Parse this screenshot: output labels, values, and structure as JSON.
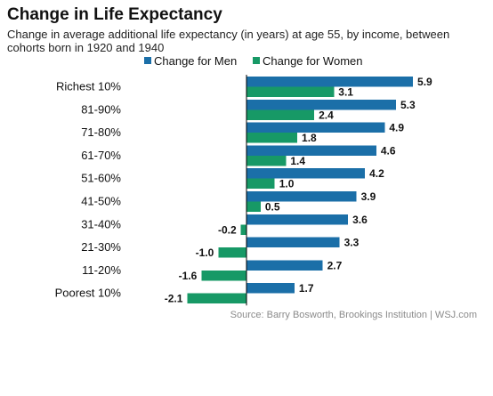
{
  "header": {
    "title": "Change in Life Expectancy",
    "subtitle": "Change in average additional life expectancy (in years) at age 55, by income, between cohorts born in 1920 and 1940"
  },
  "source": "Source: Barry Bosworth, Brookings Institution  |  WSJ.com",
  "colors": {
    "men": "#1b6fa8",
    "women": "#179966",
    "axis": "#000000"
  },
  "chart_data": {
    "type": "bar",
    "orientation": "horizontal",
    "categories": [
      "Richest 10%",
      "81-90%",
      "71-80%",
      "61-70%",
      "51-60%",
      "41-50%",
      "31-40%",
      "21-30%",
      "11-20%",
      "Poorest 10%"
    ],
    "series": [
      {
        "name": "Change for Men",
        "values": [
          5.9,
          5.3,
          4.9,
          4.6,
          4.2,
          3.9,
          3.6,
          3.3,
          2.7,
          1.7
        ]
      },
      {
        "name": "Change for Women",
        "values": [
          3.1,
          2.4,
          1.8,
          1.4,
          1.0,
          0.5,
          -0.2,
          -1.0,
          -1.6,
          -2.1
        ]
      }
    ],
    "value_labels": [
      [
        "5.9",
        "5.3",
        "4.9",
        "4.6",
        "4.2",
        "3.9",
        "3.6",
        "3.3",
        "2.7",
        "1.7"
      ],
      [
        "3.1",
        "2.4",
        "1.8",
        "1.4",
        "1.0",
        "0.5",
        "-0.2",
        "-1.0",
        "-1.6",
        "-2.1"
      ]
    ],
    "xlim": [
      -2.1,
      5.9
    ],
    "legend_position": "top",
    "grid": false
  }
}
